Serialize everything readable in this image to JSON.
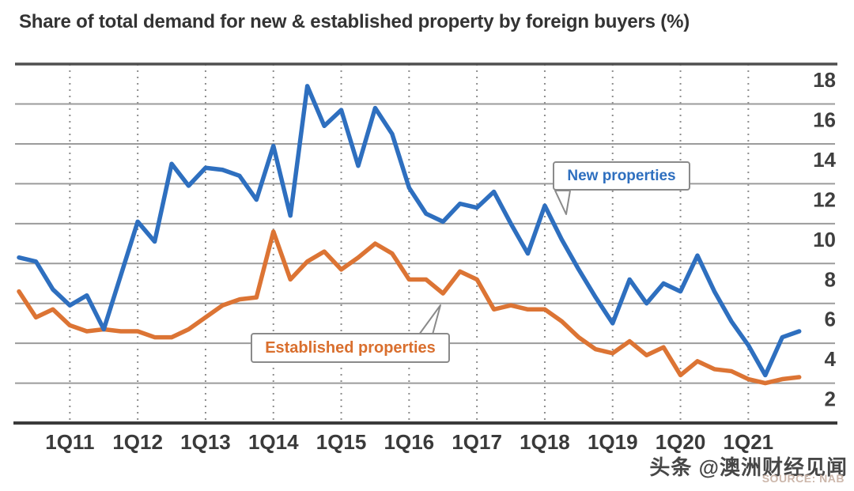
{
  "title": "Share of total demand for new & established property by foreign buyers (%)",
  "watermark": "头条 @澳洲财经见闻",
  "source": "SOURCE: NAB",
  "chart_data": {
    "type": "line",
    "title": "Share of total demand for new & established property by foreign buyers (%)",
    "x_quarters": [
      "2Q10",
      "3Q10",
      "4Q10",
      "1Q11",
      "2Q11",
      "3Q11",
      "4Q11",
      "1Q12",
      "2Q12",
      "3Q12",
      "4Q12",
      "1Q13",
      "2Q13",
      "3Q13",
      "4Q13",
      "1Q14",
      "2Q14",
      "3Q14",
      "4Q14",
      "1Q15",
      "2Q15",
      "3Q15",
      "4Q15",
      "1Q16",
      "2Q16",
      "3Q16",
      "4Q16",
      "1Q17",
      "2Q17",
      "3Q17",
      "4Q17",
      "1Q18",
      "2Q18",
      "3Q18",
      "4Q18",
      "1Q19",
      "2Q19",
      "3Q19",
      "4Q19",
      "1Q20",
      "2Q20",
      "3Q20",
      "4Q20",
      "1Q21",
      "2Q21",
      "3Q21",
      "4Q21"
    ],
    "x_tick_labels": [
      "1Q11",
      "1Q12",
      "1Q13",
      "1Q14",
      "1Q15",
      "1Q16",
      "1Q17",
      "1Q18",
      "1Q19",
      "1Q20",
      "1Q21"
    ],
    "y_ticks": [
      2,
      4,
      6,
      8,
      10,
      12,
      14,
      16,
      18
    ],
    "ylim": [
      0,
      18
    ],
    "grid": {
      "horizontal": "solid",
      "vertical": "dotted"
    },
    "legend_position": "callouts-on-chart",
    "series": [
      {
        "name": "New properties",
        "color": "#2e6fbf",
        "values": [
          8.3,
          8.1,
          6.7,
          5.9,
          6.4,
          4.7,
          7.4,
          10.1,
          9.1,
          13.0,
          11.9,
          12.8,
          12.7,
          12.4,
          11.2,
          13.9,
          10.4,
          16.9,
          14.9,
          15.7,
          12.9,
          15.8,
          14.5,
          11.8,
          10.5,
          10.1,
          11.0,
          10.8,
          11.6,
          10.0,
          8.5,
          10.9,
          9.2,
          7.7,
          6.3,
          5.0,
          7.2,
          6.0,
          7.0,
          6.6,
          8.4,
          6.6,
          5.1,
          3.9,
          2.4,
          4.3,
          4.6
        ]
      },
      {
        "name": "Established properties",
        "color": "#dc7434",
        "values": [
          6.6,
          5.3,
          5.7,
          4.9,
          4.6,
          4.7,
          4.6,
          4.6,
          4.3,
          4.3,
          4.7,
          5.3,
          5.9,
          6.2,
          6.3,
          9.6,
          7.2,
          8.1,
          8.6,
          7.7,
          8.3,
          9.0,
          8.5,
          7.2,
          7.2,
          6.5,
          7.6,
          7.2,
          5.7,
          5.9,
          5.7,
          5.7,
          5.1,
          4.3,
          3.7,
          3.5,
          4.1,
          3.4,
          3.8,
          2.4,
          3.1,
          2.7,
          2.6,
          2.2,
          2.0,
          2.2,
          2.3
        ]
      }
    ]
  }
}
